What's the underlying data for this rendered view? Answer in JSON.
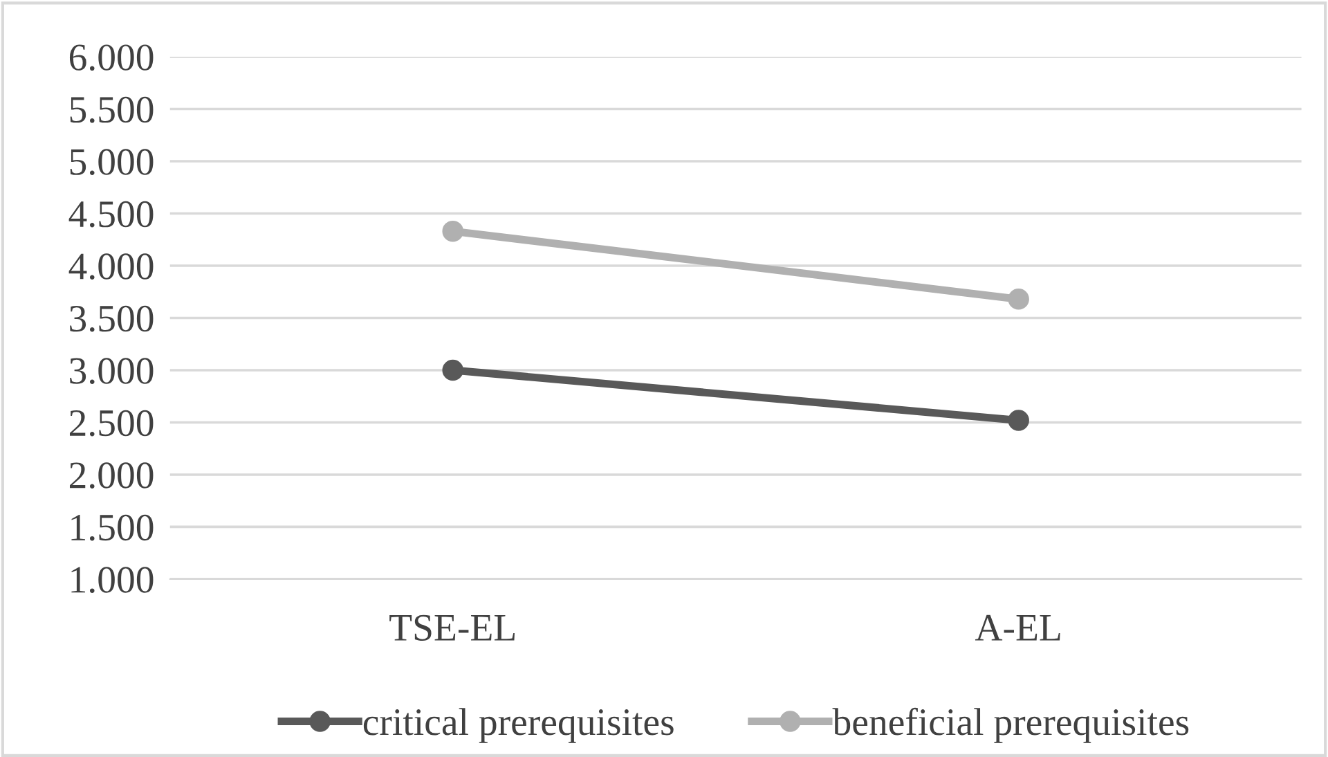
{
  "chart_data": {
    "type": "line",
    "categories": [
      "TSE-EL",
      "A-EL"
    ],
    "series": [
      {
        "name": "critical prerequisites",
        "color": "#595959",
        "values": [
          3.0,
          2.52
        ]
      },
      {
        "name": "beneficial prerequisites",
        "color": "#b0b0b0",
        "values": [
          4.33,
          3.68
        ]
      }
    ],
    "ylim": [
      1,
      6
    ],
    "yticks": [
      {
        "value": 1,
        "label": "1.000"
      },
      {
        "value": 1.5,
        "label": "1.500"
      },
      {
        "value": 2,
        "label": "2.000"
      },
      {
        "value": 2.5,
        "label": "2.500"
      },
      {
        "value": 3,
        "label": "3.000"
      },
      {
        "value": 3.5,
        "label": "3.500"
      },
      {
        "value": 4,
        "label": "4.000"
      },
      {
        "value": 4.5,
        "label": "4.500"
      },
      {
        "value": 5,
        "label": "5.000"
      },
      {
        "value": 5.5,
        "label": "5.500"
      },
      {
        "value": 6,
        "label": "6.000"
      }
    ],
    "grid": "y",
    "legend": "bottom",
    "marker": "circle",
    "line_style": "solid"
  }
}
